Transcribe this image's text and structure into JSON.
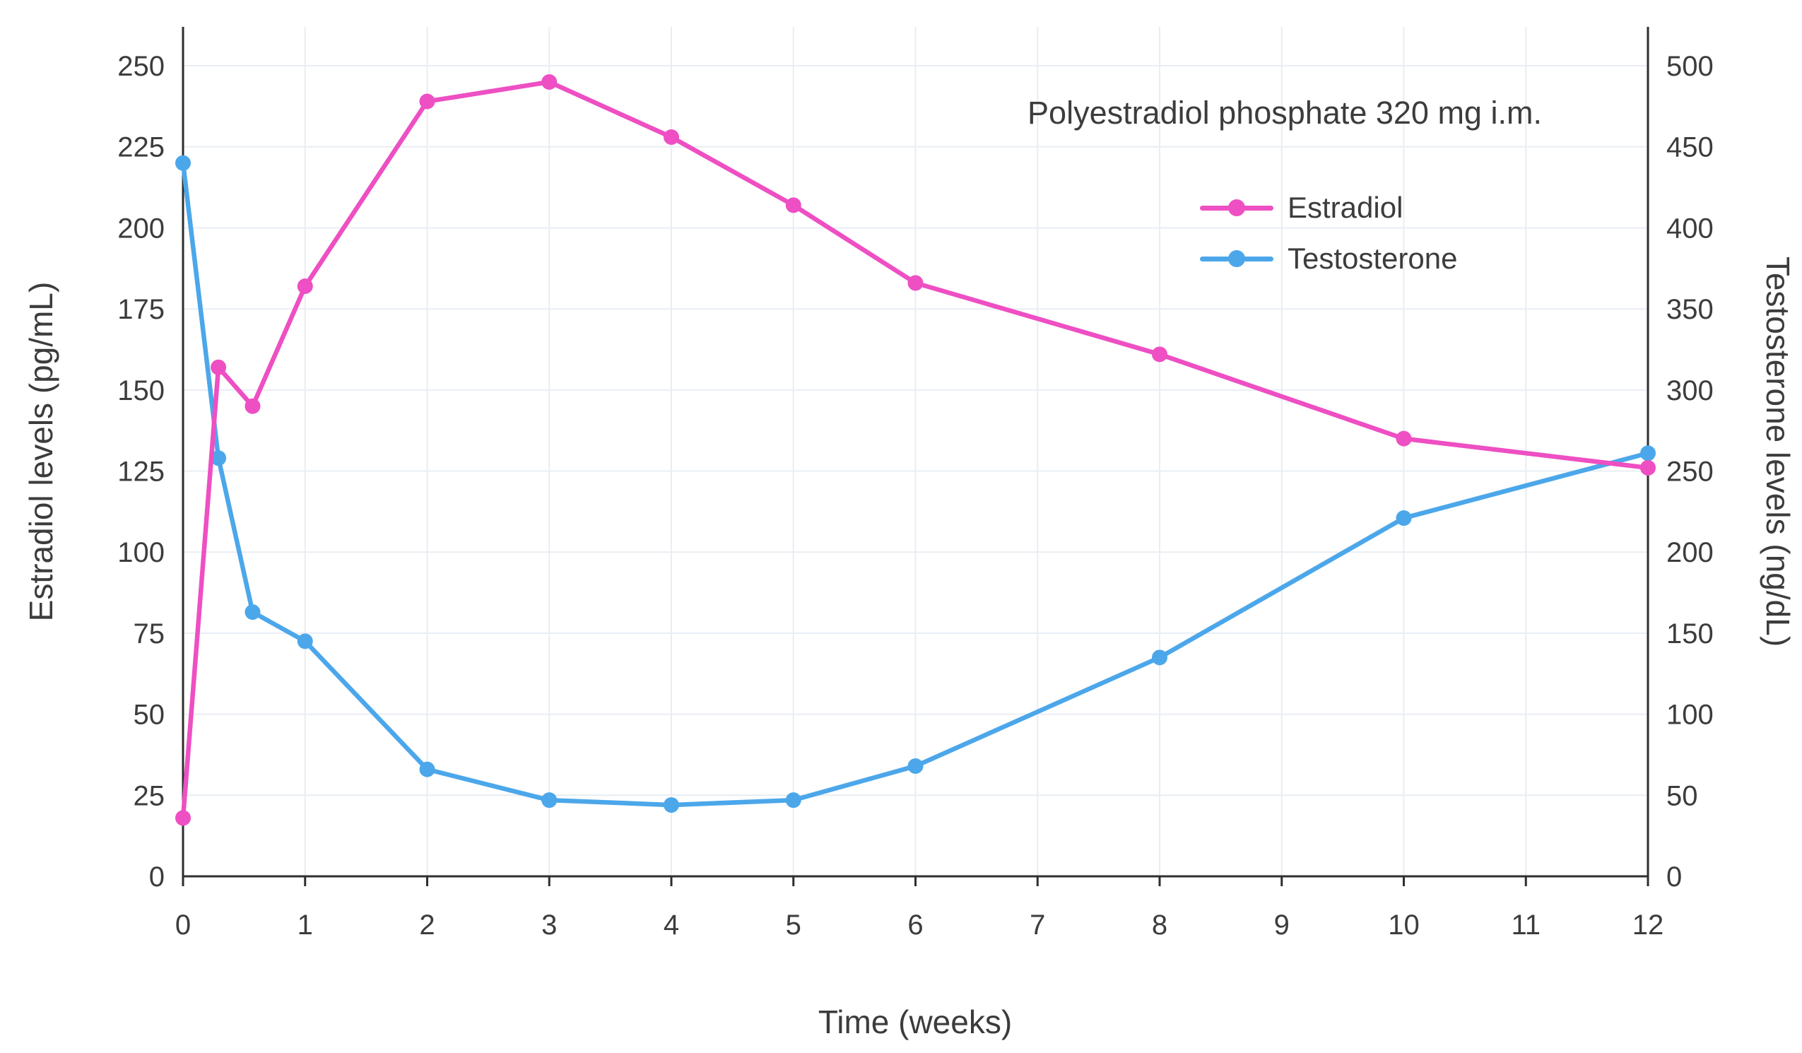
{
  "chart_data": {
    "type": "line",
    "title_annotation": "Polyestradiol phosphate 320 mg i.m.",
    "xlabel": "Time (weeks)",
    "ylabel_left": "Estradiol levels (pg/mL)",
    "ylabel_right": "Testosterone levels (ng/dL)",
    "xlim": [
      0,
      12
    ],
    "ylim_left": [
      0,
      262
    ],
    "ylim_right": [
      0,
      524
    ],
    "x_ticks": [
      0,
      1,
      2,
      3,
      4,
      5,
      6,
      7,
      8,
      9,
      10,
      11,
      12
    ],
    "y_ticks_left": [
      0,
      25,
      50,
      75,
      100,
      125,
      150,
      175,
      200,
      225,
      250
    ],
    "y_ticks_right": [
      0,
      50,
      100,
      150,
      200,
      250,
      300,
      350,
      400,
      450,
      500
    ],
    "grid": true,
    "legend_position": "top-right",
    "colors": {
      "grid": "#e9edf4",
      "axis": "#2e2e2e",
      "text": "#3c3c3c"
    },
    "series": [
      {
        "name": "Estradiol",
        "axis": "left",
        "color": "#ee4fc3",
        "x": [
          0,
          0.29,
          0.57,
          1,
          2,
          3,
          4,
          5,
          6,
          8,
          10,
          12
        ],
        "y": [
          18,
          157,
          145,
          182,
          239,
          245,
          228,
          207,
          183,
          161,
          135,
          126
        ]
      },
      {
        "name": "Testosterone",
        "axis": "right",
        "color": "#4ca7ea",
        "x": [
          0,
          0.29,
          0.57,
          1,
          2,
          3,
          4,
          5,
          6,
          8,
          10,
          12
        ],
        "y": [
          440,
          258,
          163,
          145,
          66,
          47,
          44,
          47,
          68,
          135,
          221,
          261
        ]
      }
    ]
  }
}
